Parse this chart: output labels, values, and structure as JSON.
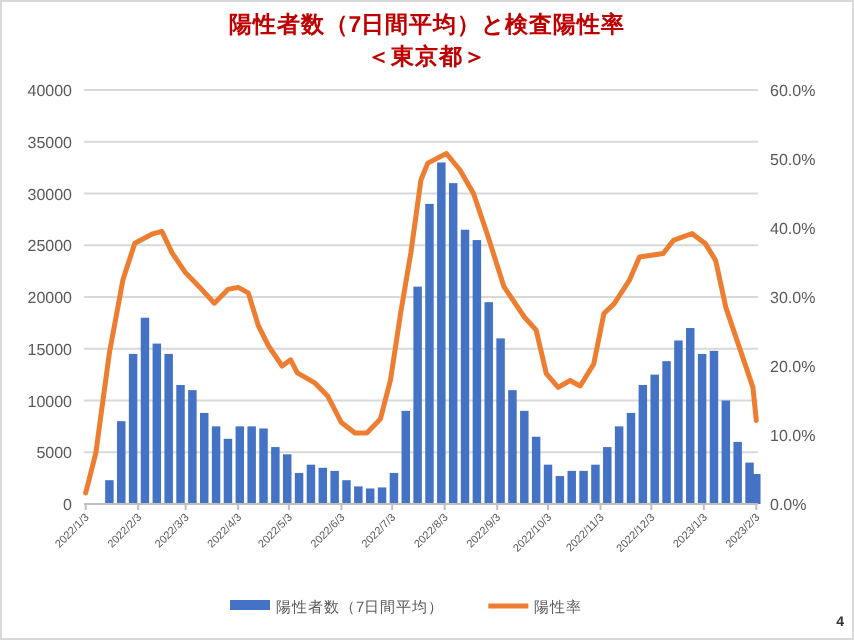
{
  "chart_data": {
    "type": "bar",
    "title": "陽性者数（7日間平均）と検査陽性率",
    "subtitle": "＜東京都＞",
    "annotations": [
      "4"
    ],
    "xlim": [
      "2022-01-02",
      "2023-02-04"
    ],
    "xticks": [
      {
        "value": "2022-01-03",
        "label": "2022/1/3"
      },
      {
        "value": "2022-02-03",
        "label": "2022/2/3"
      },
      {
        "value": "2022-03-03",
        "label": "2022/3/3"
      },
      {
        "value": "2022-04-03",
        "label": "2022/4/3"
      },
      {
        "value": "2022-05-03",
        "label": "2022/5/3"
      },
      {
        "value": "2022-06-03",
        "label": "2022/6/3"
      },
      {
        "value": "2022-07-03",
        "label": "2022/7/3"
      },
      {
        "value": "2022-08-03",
        "label": "2022/8/3"
      },
      {
        "value": "2022-09-03",
        "label": "2022/9/3"
      },
      {
        "value": "2022-10-03",
        "label": "2022/10/3"
      },
      {
        "value": "2022-11-03",
        "label": "2022/11/3"
      },
      {
        "value": "2022-12-03",
        "label": "2022/12/3"
      },
      {
        "value": "2023-01-03",
        "label": "2023/1/3"
      },
      {
        "value": "2023-02-03",
        "label": "2023/2/3"
      }
    ],
    "ylim": [
      0,
      40000
    ],
    "yticks": [
      0,
      5000,
      10000,
      15000,
      20000,
      25000,
      30000,
      35000,
      40000
    ],
    "y2lim": [
      0,
      60
    ],
    "y2ticks": [
      {
        "value": 0,
        "label": "0.0%"
      },
      {
        "value": 10,
        "label": "10.0%"
      },
      {
        "value": 20,
        "label": "20.0%"
      },
      {
        "value": 30,
        "label": "30.0%"
      },
      {
        "value": 40,
        "label": "40.0%"
      },
      {
        "value": 50,
        "label": "50.0%"
      },
      {
        "value": 60,
        "label": "60.0%"
      }
    ],
    "grid": "y",
    "legend": "bottom",
    "series": [
      {
        "name": "陽性者数（7日間平均）",
        "color": "#4472c4",
        "x": [
          "2022-01-03",
          "2022-01-17",
          "2022-01-24",
          "2022-01-31",
          "2022-02-07",
          "2022-02-14",
          "2022-02-21",
          "2022-02-28",
          "2022-03-07",
          "2022-03-14",
          "2022-03-21",
          "2022-03-28",
          "2022-04-04",
          "2022-04-11",
          "2022-04-18",
          "2022-04-25",
          "2022-05-02",
          "2022-05-09",
          "2022-05-16",
          "2022-05-23",
          "2022-05-30",
          "2022-06-06",
          "2022-06-13",
          "2022-06-20",
          "2022-06-27",
          "2022-07-04",
          "2022-07-11",
          "2022-07-18",
          "2022-07-25",
          "2022-08-01",
          "2022-08-08",
          "2022-08-15",
          "2022-08-22",
          "2022-08-29",
          "2022-09-05",
          "2022-09-12",
          "2022-09-19",
          "2022-09-26",
          "2022-10-03",
          "2022-10-10",
          "2022-10-17",
          "2022-10-24",
          "2022-10-31",
          "2022-11-07",
          "2022-11-14",
          "2022-11-21",
          "2022-11-28",
          "2022-12-05",
          "2022-12-12",
          "2022-12-19",
          "2022-12-26",
          "2023-01-02",
          "2023-01-09",
          "2023-01-16",
          "2023-01-23",
          "2023-01-30",
          "2023-02-03"
        ],
        "values": [
          0,
          2300,
          8000,
          14500,
          18000,
          15500,
          14500,
          11500,
          11000,
          8800,
          7500,
          6300,
          7500,
          7500,
          7300,
          5500,
          4800,
          3000,
          3800,
          3500,
          3200,
          2300,
          1700,
          1500,
          1600,
          3000,
          9000,
          21000,
          29000,
          33000,
          31000,
          26500,
          25500,
          19500,
          16000,
          11000,
          9000,
          6500,
          3800,
          2700,
          3200,
          3200,
          3800,
          5500,
          7500,
          8800,
          11500,
          12500,
          13800,
          15800,
          17000,
          14500,
          14800,
          10000,
          6000,
          4000,
          2900
        ]
      },
      {
        "name": "陽性率",
        "type": "line",
        "axis": "y2",
        "color": "#ed7d31",
        "x": [
          "2022-01-03",
          "2022-01-09",
          "2022-01-17",
          "2022-01-25",
          "2022-02-01",
          "2022-02-11",
          "2022-02-17",
          "2022-02-23",
          "2022-03-03",
          "2022-03-11",
          "2022-03-20",
          "2022-03-28",
          "2022-04-03",
          "2022-04-09",
          "2022-04-15",
          "2022-04-21",
          "2022-04-29",
          "2022-05-04",
          "2022-05-08",
          "2022-05-18",
          "2022-05-26",
          "2022-06-03",
          "2022-06-11",
          "2022-06-18",
          "2022-06-26",
          "2022-07-02",
          "2022-07-08",
          "2022-07-14",
          "2022-07-20",
          "2022-07-24",
          "2022-08-04",
          "2022-08-12",
          "2022-08-20",
          "2022-08-28",
          "2022-09-07",
          "2022-09-19",
          "2022-09-26",
          "2022-10-02",
          "2022-10-09",
          "2022-10-16",
          "2022-10-22",
          "2022-10-30",
          "2022-11-05",
          "2022-11-11",
          "2022-11-20",
          "2022-11-26",
          "2022-12-10",
          "2022-12-16",
          "2022-12-27",
          "2023-01-04",
          "2023-01-10",
          "2023-01-16",
          "2023-01-24",
          "2023-02-01",
          "2023-02-03"
        ],
        "values": [
          1.6,
          7.4,
          21.9,
          32.5,
          37.8,
          39.1,
          39.5,
          36.4,
          33.5,
          31.5,
          29.1,
          31.1,
          31.4,
          30.6,
          25.8,
          22.9,
          20.0,
          20.9,
          19.0,
          17.6,
          15.6,
          11.8,
          10.3,
          10.3,
          12.3,
          18.0,
          27.7,
          36.4,
          47.0,
          49.4,
          50.8,
          48.4,
          45.0,
          39.2,
          31.5,
          27.1,
          25.2,
          18.9,
          16.9,
          17.9,
          17.1,
          20.3,
          27.6,
          29.0,
          32.4,
          35.8,
          36.3,
          38.2,
          39.2,
          37.7,
          35.3,
          28.5,
          22.7,
          16.9,
          12.1
        ]
      }
    ]
  }
}
